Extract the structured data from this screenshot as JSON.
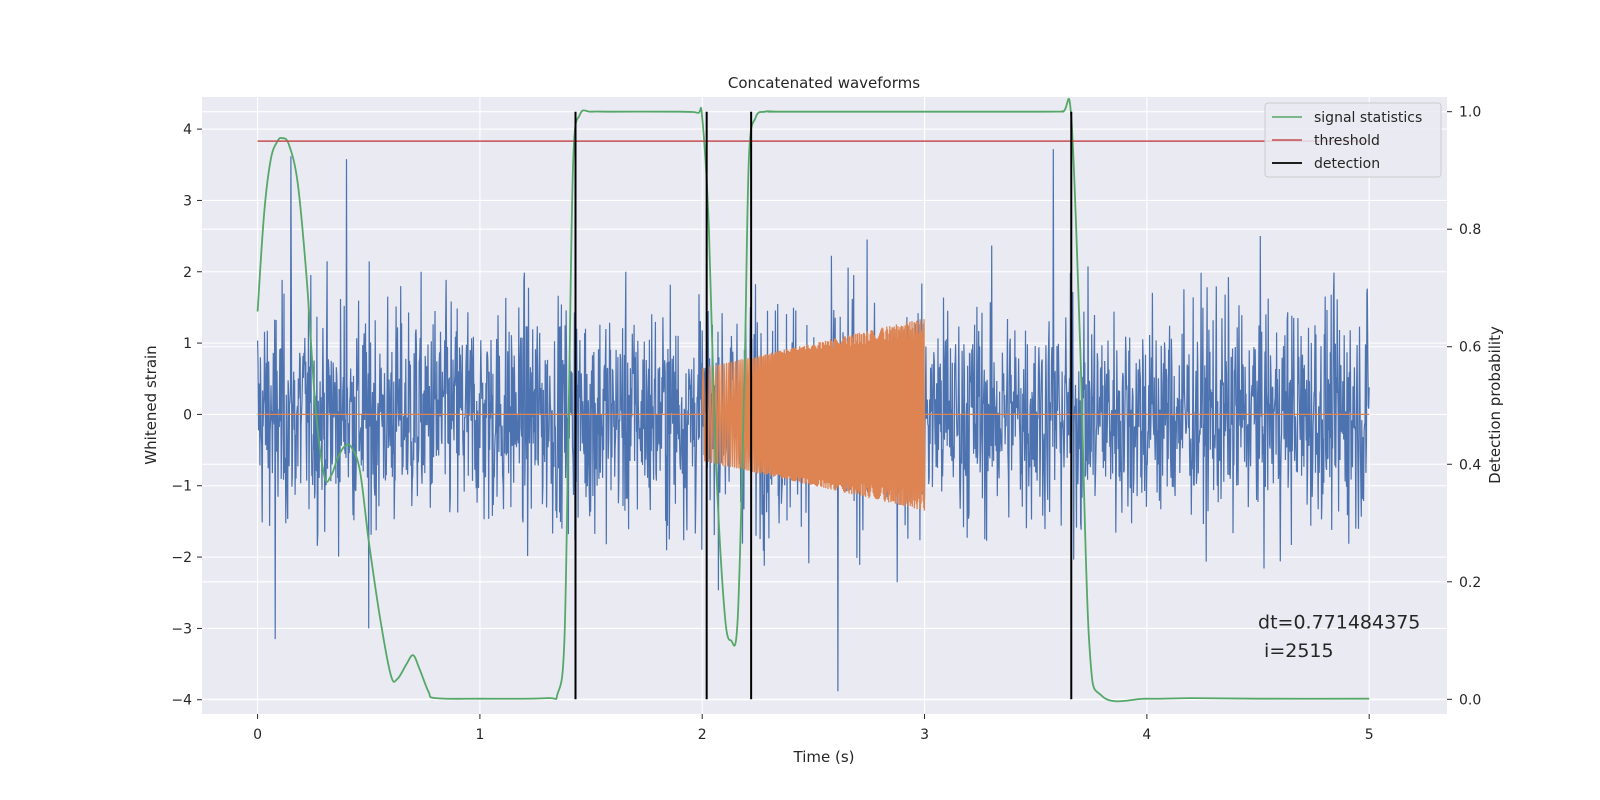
{
  "chart_data": {
    "type": "line",
    "title": "Concatenated waveforms",
    "xlabel": "Time (s)",
    "ylabel": "Whitened strain",
    "y2label": "Detection probability",
    "xlim": [
      -0.25,
      5.35
    ],
    "ylim": [
      -4.2,
      4.45
    ],
    "y2lim": [
      -0.025,
      1.025
    ],
    "xticks": [
      0,
      1,
      2,
      3,
      4,
      5
    ],
    "yticks": [
      -4,
      -3,
      -2,
      -1,
      0,
      1,
      2,
      3,
      4
    ],
    "y2ticks": [
      0.0,
      0.2,
      0.4,
      0.6,
      0.8,
      1.0
    ],
    "y2ticklabels": [
      "0.0",
      "0.2",
      "0.4",
      "0.6",
      "0.8",
      "1.0"
    ],
    "grid": true,
    "legend_position": "top-right",
    "colors": {
      "strain": "#4c72b0",
      "injection": "#dd8452",
      "signal": "#55a868",
      "threshold": "#c44e52",
      "detection": "#000000",
      "background": "#eaeaf2",
      "grid": "#ffffff"
    },
    "series": [
      {
        "name": "",
        "role": "strain",
        "axis": "left",
        "x_range": [
          0,
          5
        ],
        "amplitude_typical": 1.1,
        "peak_values": [
          [
            0.15,
            3.62
          ],
          [
            0.4,
            3.58
          ],
          [
            3.58,
            3.72
          ],
          [
            0.08,
            -3.15
          ],
          [
            2.61,
            -3.88
          ],
          [
            0.5,
            -3.0
          ]
        ]
      },
      {
        "name": "",
        "role": "injection",
        "axis": "left",
        "x_range": [
          2.0,
          3.0
        ],
        "amplitude_start": 0.65,
        "amplitude_end": 1.35
      },
      {
        "name": "signal statistics",
        "role": "signal",
        "axis": "right",
        "x": [
          0,
          0.03,
          0.06,
          0.09,
          0.11,
          0.14,
          0.18,
          0.22,
          0.26,
          0.3,
          0.33,
          0.36,
          0.39,
          0.42,
          0.46,
          0.5,
          0.55,
          0.6,
          0.63,
          0.67,
          0.7,
          0.73,
          0.77,
          0.8,
          1.0,
          1.3,
          1.35,
          1.38,
          1.4,
          1.42,
          1.45,
          1.5,
          1.6,
          1.9,
          1.98,
          2.0,
          2.03,
          2.06,
          2.1,
          2.13,
          2.16,
          2.19,
          2.21,
          2.24,
          2.28,
          2.33,
          2.4,
          3.5,
          3.62,
          3.66,
          3.7,
          3.74,
          3.8,
          4.0,
          4.2,
          4.5,
          5.0
        ],
        "y": [
          0.66,
          0.83,
          0.92,
          0.95,
          0.955,
          0.945,
          0.88,
          0.72,
          0.5,
          0.38,
          0.38,
          0.41,
          0.43,
          0.43,
          0.39,
          0.27,
          0.14,
          0.04,
          0.035,
          0.06,
          0.075,
          0.05,
          0.012,
          0.002,
          0.001,
          0.002,
          0.01,
          0.1,
          0.5,
          0.92,
          0.995,
          1.0,
          1.0,
          1.0,
          0.998,
          0.99,
          0.8,
          0.42,
          0.15,
          0.1,
          0.14,
          0.55,
          0.92,
          0.99,
          1.0,
          1.0,
          1.0,
          1.0,
          1.0,
          0.99,
          0.6,
          0.1,
          0.005,
          0.001,
          0.002,
          0.001,
          0.001
        ]
      },
      {
        "name": "threshold",
        "role": "threshold",
        "axis": "right",
        "x": [
          0,
          5
        ],
        "y": [
          0.95,
          0.95
        ]
      },
      {
        "name": "detection",
        "role": "detection",
        "axis": "right",
        "x_positions": [
          1.43,
          2.02,
          2.22,
          3.66
        ],
        "y_range": [
          0,
          1.0
        ]
      }
    ],
    "annotations": [
      {
        "text": "dt=0.771484375",
        "x": 4.5,
        "y": -3.0
      },
      {
        "text": " i=2515",
        "x": 4.5,
        "y": -3.4
      }
    ]
  }
}
